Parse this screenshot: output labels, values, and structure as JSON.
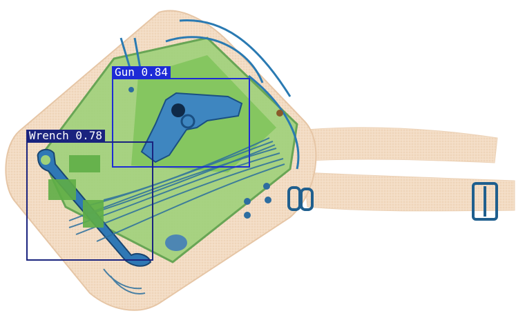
{
  "detections": [
    {
      "label": "Gun",
      "score": "0.84",
      "text": "Gun 0.84",
      "color": "#1d2bd6"
    },
    {
      "label": "Wrench",
      "score": "0.78",
      "text": "Wrench 0.78",
      "color": "#1a237e"
    }
  ],
  "palette": {
    "background": "#ffffff",
    "organic": "#f3dcc4",
    "inorganic": "#7fc45a",
    "metal": "#1f6fa8",
    "dense_metal": "#173a6a"
  }
}
